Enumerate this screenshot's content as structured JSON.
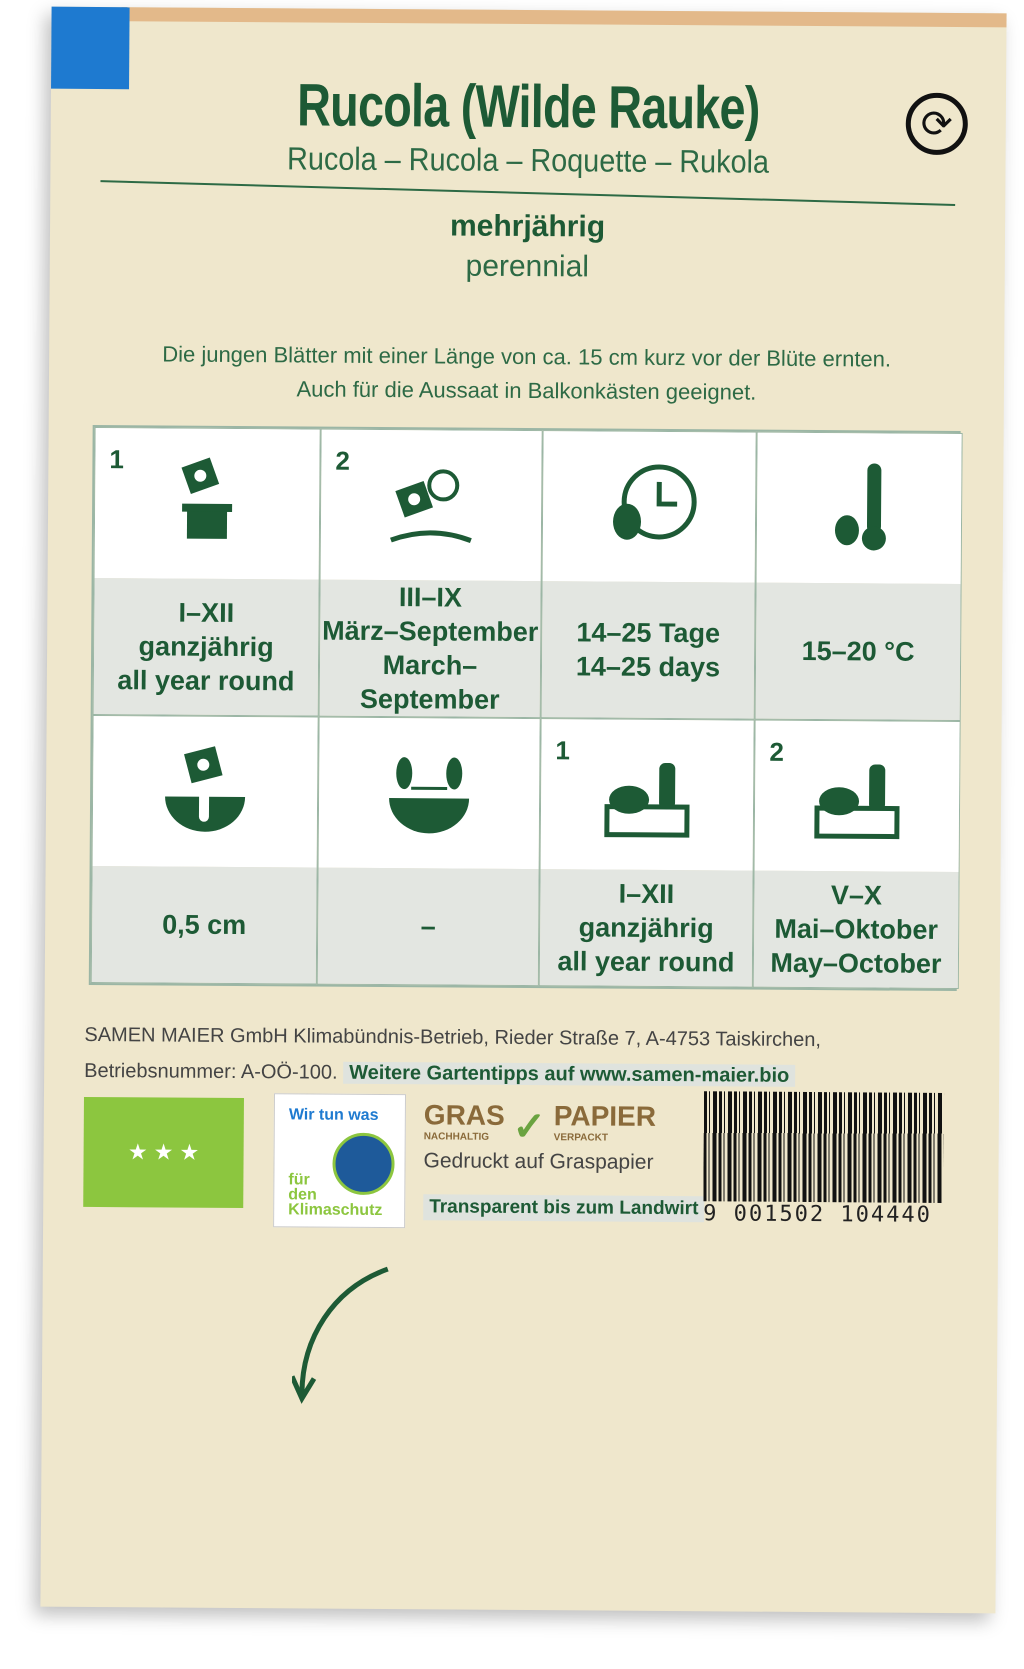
{
  "header": {
    "title": "Rucola (Wilde Rauke)",
    "subtitle": "Rucola – Rucola – Roquette – Rukola",
    "lifecycle_de": "mehrjährig",
    "lifecycle_en": "perennial"
  },
  "description": [
    "Die jungen Blätter mit einer Länge von ca. 15 cm kurz vor der Blüte ernten.",
    "Auch für die Aussaat in Balkonkästen geeignet."
  ],
  "grid": [
    {
      "num": "1",
      "icon": "sowing-pot-icon",
      "lines": [
        "I–XII",
        "ganzjährig",
        "all year round"
      ]
    },
    {
      "num": "2",
      "icon": "sowing-outdoor-sun-icon",
      "lines": [
        "III–IX",
        "März–September",
        "March–September"
      ]
    },
    {
      "num": "",
      "icon": "germination-clock-icon",
      "lines": [
        "14–25 Tage",
        "14–25 days"
      ]
    },
    {
      "num": "",
      "icon": "temperature-icon",
      "lines": [
        "15–20 °C"
      ]
    },
    {
      "num": "",
      "icon": "sowing-depth-icon",
      "lines": [
        "0,5 cm"
      ]
    },
    {
      "num": "",
      "icon": "plant-spacing-icon",
      "lines": [
        "–"
      ]
    },
    {
      "num": "1",
      "icon": "harvest-crate-icon",
      "lines": [
        "I–XII",
        "ganzjährig",
        "all year round"
      ]
    },
    {
      "num": "2",
      "icon": "harvest-crate-icon",
      "lines": [
        "V–X",
        "Mai–Oktober",
        "May–October"
      ]
    }
  ],
  "footer": {
    "company": "SAMEN MAIER GmbH Klimabündnis-Betrieb, Rieder Straße 7, A-4753 Taiskirchen,",
    "reg": "Betriebsnummer: A-OÖ-100.",
    "tips": "Weitere Gartentipps auf www.samen-maier.bio",
    "klima_top": "Wir tun was",
    "klima_bottom": "für den Klimaschutz",
    "gras": "GRAS",
    "gras_sub": "NACHHALTIG",
    "papier": "PAPIER",
    "papier_sub": "VERPACKT",
    "gedruckt": "Gedruckt auf Graspapier",
    "transparent": "Transparent bis zum Landwirt",
    "barcode": "9 001502 104440"
  },
  "colors": {
    "green": "#1d5a35",
    "paper": "#efe7cc",
    "blue": "#1e7ad0",
    "eu_green": "#8cc63f"
  }
}
